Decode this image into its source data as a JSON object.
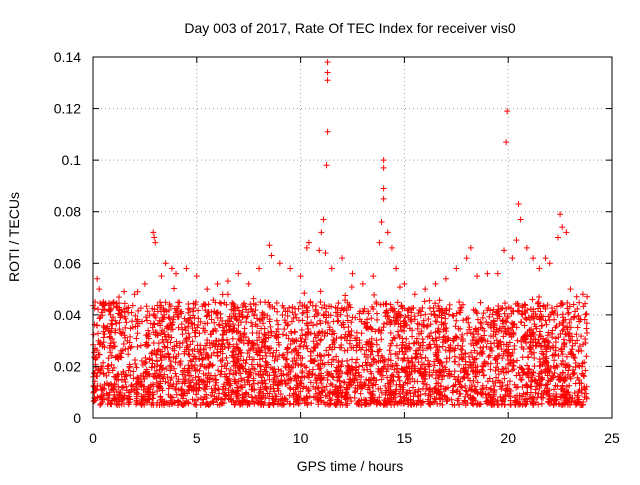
{
  "chart_data": {
    "type": "scatter",
    "title": "Day 003 of 2017, Rate Of TEC Index for receiver vis0",
    "xlabel": "GPS time / hours",
    "ylabel": "ROTI / TECUs",
    "xlim": [
      0,
      25
    ],
    "ylim": [
      0,
      0.14
    ],
    "xticks": [
      0,
      5,
      10,
      15,
      20,
      25
    ],
    "xtick_labels": [
      "0",
      "5",
      "10",
      "15",
      "20",
      "25"
    ],
    "yticks": [
      0,
      0.02,
      0.04,
      0.06,
      0.08,
      0.1,
      0.12,
      0.14
    ],
    "ytick_labels": [
      "0",
      "0.02",
      "0.04",
      "0.06",
      "0.08",
      "0.1",
      "0.12",
      "0.14"
    ],
    "grid": true,
    "marker": "plus",
    "color": "#ff0000",
    "series": [
      {
        "name": "vis0",
        "note": "dense cloud of ~thousands of points spanning 0–23.8 h, mostly 0.005–0.05 TECU; representative spikes listed",
        "points": [
          [
            0.1,
            0.045
          ],
          [
            0.2,
            0.054
          ],
          [
            0.3,
            0.05
          ],
          [
            0.5,
            0.045
          ],
          [
            1.0,
            0.045
          ],
          [
            1.5,
            0.049
          ],
          [
            2.0,
            0.048
          ],
          [
            2.5,
            0.052
          ],
          [
            2.9,
            0.072
          ],
          [
            2.95,
            0.07
          ],
          [
            3.0,
            0.068
          ],
          [
            3.3,
            0.055
          ],
          [
            3.5,
            0.06
          ],
          [
            3.8,
            0.058
          ],
          [
            4.0,
            0.056
          ],
          [
            4.5,
            0.058
          ],
          [
            5.0,
            0.055
          ],
          [
            5.5,
            0.05
          ],
          [
            6.0,
            0.052
          ],
          [
            6.5,
            0.048
          ],
          [
            7.0,
            0.056
          ],
          [
            7.5,
            0.052
          ],
          [
            8.0,
            0.058
          ],
          [
            8.5,
            0.067
          ],
          [
            8.6,
            0.063
          ],
          [
            9.0,
            0.06
          ],
          [
            9.5,
            0.058
          ],
          [
            10.0,
            0.055
          ],
          [
            10.3,
            0.066
          ],
          [
            10.4,
            0.068
          ],
          [
            10.9,
            0.065
          ],
          [
            11.0,
            0.072
          ],
          [
            11.1,
            0.077
          ],
          [
            11.2,
            0.064
          ],
          [
            11.25,
            0.098
          ],
          [
            11.3,
            0.111
          ],
          [
            11.3,
            0.131
          ],
          [
            11.3,
            0.134
          ],
          [
            11.3,
            0.138
          ],
          [
            11.5,
            0.058
          ],
          [
            12.0,
            0.062
          ],
          [
            12.5,
            0.056
          ],
          [
            13.0,
            0.052
          ],
          [
            13.5,
            0.055
          ],
          [
            13.8,
            0.068
          ],
          [
            13.9,
            0.076
          ],
          [
            14.0,
            0.085
          ],
          [
            14.0,
            0.089
          ],
          [
            14.0,
            0.097
          ],
          [
            14.0,
            0.1
          ],
          [
            14.2,
            0.072
          ],
          [
            14.4,
            0.066
          ],
          [
            14.6,
            0.058
          ],
          [
            15.0,
            0.052
          ],
          [
            15.5,
            0.048
          ],
          [
            16.0,
            0.05
          ],
          [
            16.5,
            0.052
          ],
          [
            17.0,
            0.054
          ],
          [
            17.5,
            0.058
          ],
          [
            18.0,
            0.062
          ],
          [
            18.2,
            0.066
          ],
          [
            18.5,
            0.055
          ],
          [
            19.0,
            0.056
          ],
          [
            19.5,
            0.056
          ],
          [
            19.8,
            0.065
          ],
          [
            19.9,
            0.107
          ],
          [
            19.95,
            0.119
          ],
          [
            20.2,
            0.062
          ],
          [
            20.4,
            0.069
          ],
          [
            20.5,
            0.083
          ],
          [
            20.6,
            0.077
          ],
          [
            20.9,
            0.066
          ],
          [
            21.2,
            0.062
          ],
          [
            21.5,
            0.058
          ],
          [
            21.8,
            0.062
          ],
          [
            22.0,
            0.06
          ],
          [
            22.4,
            0.07
          ],
          [
            22.5,
            0.079
          ],
          [
            22.6,
            0.074
          ],
          [
            22.8,
            0.072
          ],
          [
            23.0,
            0.05
          ],
          [
            23.3,
            0.047
          ],
          [
            23.6,
            0.048
          ],
          [
            23.8,
            0.047
          ]
        ]
      }
    ]
  }
}
